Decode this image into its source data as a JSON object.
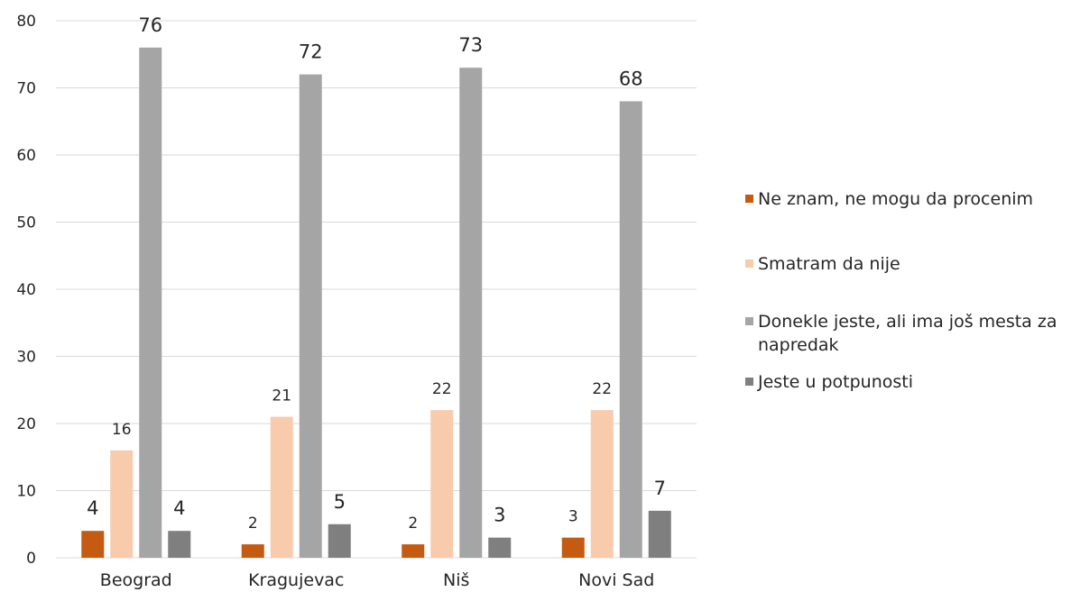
{
  "chart_data": {
    "type": "bar",
    "categories": [
      "Beograd",
      "Kragujevac",
      "Niš",
      "Novi Sad"
    ],
    "series": [
      {
        "name": "Ne znam, ne mogu da procenim",
        "values": [
          4,
          2,
          2,
          3
        ],
        "color": "#C55A11"
      },
      {
        "name": "Smatram da nije",
        "values": [
          16,
          21,
          22,
          22
        ],
        "color": "#F8CBAD"
      },
      {
        "name": "Donekle jeste, ali ima još mesta za napredak",
        "values": [
          76,
          72,
          73,
          68
        ],
        "color": "#A5A5A5"
      },
      {
        "name": "Jeste u potpunosti",
        "values": [
          4,
          5,
          3,
          7
        ],
        "color": "#7F7F7F"
      }
    ],
    "ylim": [
      0,
      80
    ],
    "yticks": [
      "0",
      "10",
      "20",
      "30",
      "40",
      "50",
      "60",
      "70",
      "80"
    ],
    "grid": true,
    "legend_position": "right",
    "gridline_color": "#D9D9D9"
  }
}
